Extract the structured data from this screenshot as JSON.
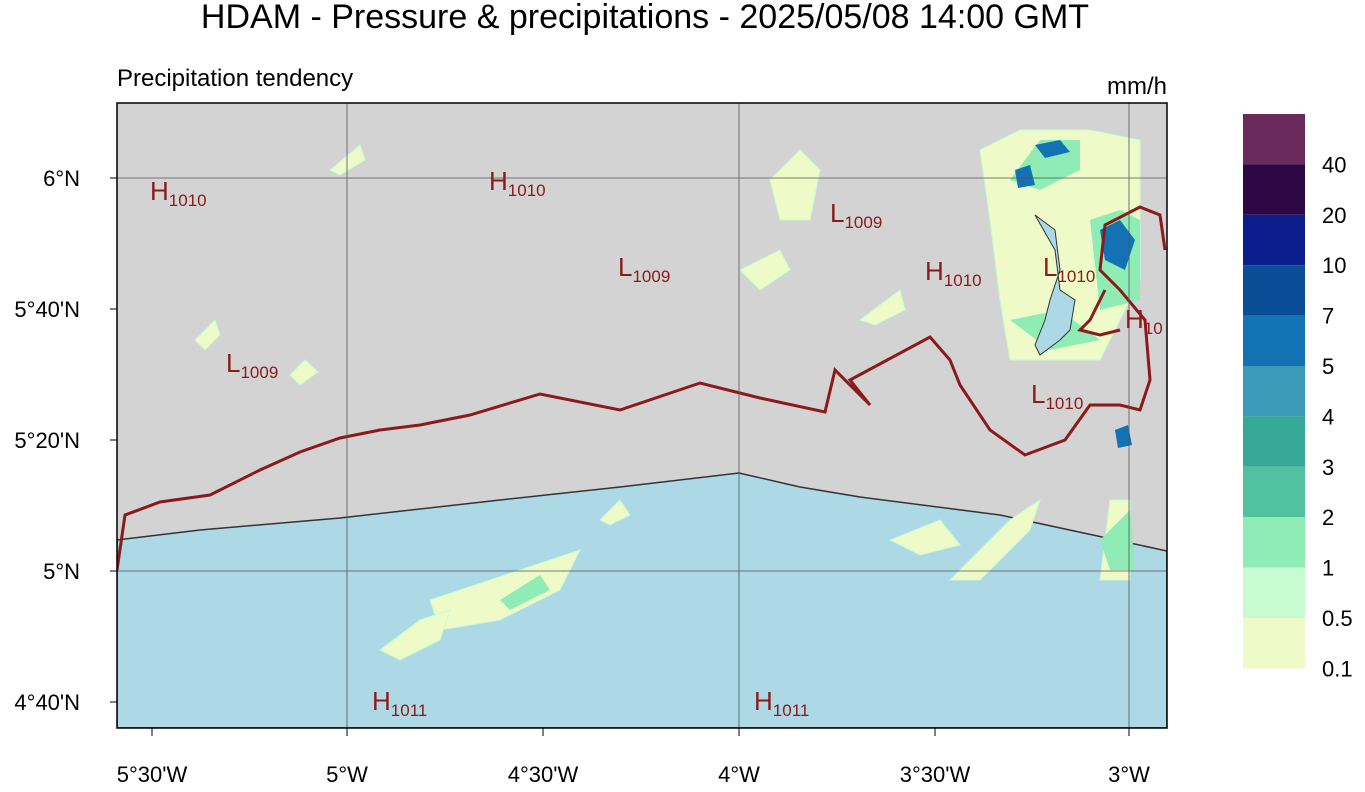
{
  "header": {
    "title": "HDAM - Pressure & precipitations  -  2025/05/08  14:00 GMT",
    "subtitle": "Precipitation tendency"
  },
  "map": {
    "lat_labels": [
      "6°N",
      "5°40'N",
      "5°20'N",
      "5°N",
      "4°40'N"
    ],
    "lon_labels": [
      "5°30'W",
      "5°W",
      "4°30'W",
      "4°W",
      "3°30'W",
      "3°W"
    ],
    "pressure_labels": [
      {
        "letter": "H",
        "value": "1010"
      },
      {
        "letter": "H",
        "value": "1010"
      },
      {
        "letter": "L",
        "value": "1009"
      },
      {
        "letter": "L",
        "value": "1009"
      },
      {
        "letter": "H",
        "value": "1010"
      },
      {
        "letter": "L",
        "value": "1010"
      },
      {
        "letter": "H",
        "value": "10"
      },
      {
        "letter": "L",
        "value": "1009"
      },
      {
        "letter": "L",
        "value": "1010"
      },
      {
        "letter": "H",
        "value": "1011"
      },
      {
        "letter": "H",
        "value": "1011"
      }
    ]
  },
  "legend": {
    "unit": "mm/h",
    "levels": [
      {
        "label": "40",
        "color": "#6b2a5c"
      },
      {
        "label": "20",
        "color": "#2d0845"
      },
      {
        "label": "10",
        "color": "#0c1e8c"
      },
      {
        "label": "7",
        "color": "#0a4d96"
      },
      {
        "label": "5",
        "color": "#1272b3"
      },
      {
        "label": "4",
        "color": "#3a9ab8"
      },
      {
        "label": "3",
        "color": "#35a897"
      },
      {
        "label": "2",
        "color": "#52c1a0"
      },
      {
        "label": "1",
        "color": "#8eecb4"
      },
      {
        "label": "0.5",
        "color": "#c6fcd0"
      },
      {
        "label": "0.1",
        "color": "#eefac8"
      }
    ]
  }
}
